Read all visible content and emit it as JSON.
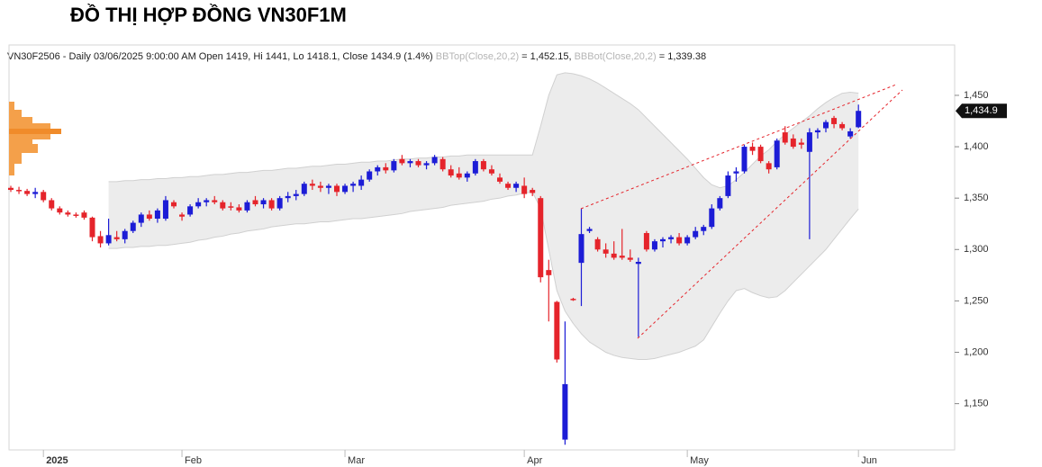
{
  "chart_data": {
    "type": "candlestick",
    "title": "ĐỒ THỊ HỢP ĐỒNG VN30F1M",
    "info": {
      "summary": "VN30F2506 - Daily 03/06/2025 9:00:00 AM Open 1419, Hi 1441, Lo 1418.1, Close 1434.9 (1.4%)",
      "bb_top_name": "BBTop(Close,20,2)",
      "bb_top_value": "= 1,452.15,",
      "bb_bot_name": "BBBot(Close,20,2)",
      "bb_bot_value": "= 1,339.38"
    },
    "categories": [
      null,
      null,
      null,
      null,
      "2025",
      null,
      null,
      null,
      null,
      null,
      null,
      null,
      null,
      null,
      null,
      null,
      null,
      null,
      null,
      null,
      null,
      "Feb",
      null,
      null,
      null,
      null,
      null,
      null,
      null,
      null,
      null,
      null,
      null,
      null,
      null,
      null,
      null,
      null,
      null,
      null,
      null,
      "Mar",
      null,
      null,
      null,
      null,
      null,
      null,
      null,
      null,
      null,
      null,
      null,
      null,
      null,
      null,
      null,
      null,
      null,
      null,
      null,
      null,
      null,
      "Apr",
      null,
      null,
      null,
      null,
      null,
      null,
      null,
      null,
      null,
      null,
      null,
      null,
      null,
      null,
      null,
      null,
      null,
      null,
      null,
      "May",
      null,
      null,
      null,
      null,
      null,
      null,
      null,
      null,
      null,
      null,
      null,
      null,
      null,
      null,
      null,
      null,
      null,
      null,
      null,
      null,
      "Jun"
    ],
    "candles": [
      [
        1360,
        1362,
        1356,
        1358
      ],
      [
        1358,
        1361,
        1354,
        1357
      ],
      [
        1357,
        1359,
        1352,
        1354
      ],
      [
        1354,
        1360,
        1350,
        1356
      ],
      [
        1356,
        1358,
        1346,
        1348
      ],
      [
        1348,
        1350,
        1338,
        1340
      ],
      [
        1340,
        1342,
        1334,
        1336
      ],
      [
        1336,
        1338,
        1332,
        1334
      ],
      [
        1334,
        1336,
        1331,
        1333
      ],
      [
        1336,
        1338,
        1329,
        1331
      ],
      [
        1331,
        1332,
        1308,
        1312
      ],
      [
        1313,
        1318,
        1302,
        1306
      ],
      [
        1306,
        1330,
        1304,
        1314
      ],
      [
        1312,
        1318,
        1308,
        1310
      ],
      [
        1310,
        1320,
        1306,
        1318
      ],
      [
        1318,
        1328,
        1316,
        1326
      ],
      [
        1326,
        1336,
        1322,
        1334
      ],
      [
        1334,
        1338,
        1328,
        1330
      ],
      [
        1330,
        1340,
        1326,
        1338
      ],
      [
        1330,
        1352,
        1328,
        1348
      ],
      [
        1346,
        1348,
        1340,
        1342
      ],
      [
        1334,
        1336,
        1328,
        1332
      ],
      [
        1334,
        1344,
        1332,
        1342
      ],
      [
        1342,
        1350,
        1340,
        1346
      ],
      [
        1346,
        1350,
        1342,
        1348
      ],
      [
        1348,
        1352,
        1344,
        1346
      ],
      [
        1346,
        1348,
        1338,
        1340
      ],
      [
        1342,
        1346,
        1338,
        1341
      ],
      [
        1341,
        1344,
        1336,
        1338
      ],
      [
        1338,
        1348,
        1336,
        1346
      ],
      [
        1348,
        1352,
        1342,
        1344
      ],
      [
        1344,
        1350,
        1340,
        1348
      ],
      [
        1348,
        1350,
        1338,
        1340
      ],
      [
        1340,
        1352,
        1338,
        1350
      ],
      [
        1350,
        1356,
        1346,
        1352
      ],
      [
        1352,
        1358,
        1348,
        1354
      ],
      [
        1354,
        1366,
        1352,
        1364
      ],
      [
        1364,
        1368,
        1358,
        1362
      ],
      [
        1362,
        1366,
        1356,
        1360
      ],
      [
        1360,
        1364,
        1354,
        1362
      ],
      [
        1362,
        1364,
        1352,
        1356
      ],
      [
        1356,
        1364,
        1354,
        1362
      ],
      [
        1362,
        1366,
        1356,
        1364
      ],
      [
        1362,
        1372,
        1358,
        1368
      ],
      [
        1368,
        1378,
        1366,
        1376
      ],
      [
        1376,
        1382,
        1372,
        1380
      ],
      [
        1380,
        1384,
        1374,
        1377
      ],
      [
        1377,
        1388,
        1375,
        1386
      ],
      [
        1388,
        1392,
        1382,
        1384
      ],
      [
        1384,
        1388,
        1380,
        1386
      ],
      [
        1386,
        1388,
        1380,
        1382
      ],
      [
        1382,
        1386,
        1378,
        1384
      ],
      [
        1384,
        1392,
        1382,
        1390
      ],
      [
        1388,
        1390,
        1376,
        1378
      ],
      [
        1378,
        1382,
        1370,
        1372
      ],
      [
        1374,
        1380,
        1368,
        1370
      ],
      [
        1370,
        1376,
        1366,
        1374
      ],
      [
        1374,
        1388,
        1372,
        1386
      ],
      [
        1386,
        1388,
        1376,
        1378
      ],
      [
        1378,
        1382,
        1372,
        1374
      ],
      [
        1370,
        1374,
        1364,
        1366
      ],
      [
        1364,
        1366,
        1358,
        1360
      ],
      [
        1360,
        1366,
        1356,
        1364
      ],
      [
        1362,
        1370,
        1350,
        1354
      ],
      [
        1358,
        1360,
        1352,
        1355
      ],
      [
        1350,
        1352,
        1268,
        1273
      ],
      [
        1280,
        1290,
        1230,
        1275
      ],
      [
        1249,
        1250,
        1190,
        1193
      ],
      [
        1115,
        1230,
        1110,
        1169
      ],
      [
        1252,
        1253,
        1250,
        1251
      ],
      [
        1287,
        1340,
        1245,
        1315
      ],
      [
        1318,
        1322,
        1316,
        1320
      ],
      [
        1310,
        1312,
        1298,
        1300
      ],
      [
        1300,
        1306,
        1292,
        1296
      ],
      [
        1296,
        1308,
        1290,
        1292
      ],
      [
        1294,
        1320,
        1290,
        1292
      ],
      [
        1292,
        1300,
        1288,
        1290
      ],
      [
        1286,
        1292,
        1215,
        1288
      ],
      [
        1316,
        1318,
        1298,
        1300
      ],
      [
        1300,
        1310,
        1298,
        1308
      ],
      [
        1308,
        1312,
        1302,
        1310
      ],
      [
        1310,
        1314,
        1306,
        1312
      ],
      [
        1312,
        1316,
        1304,
        1306
      ],
      [
        1306,
        1314,
        1304,
        1312
      ],
      [
        1312,
        1322,
        1310,
        1318
      ],
      [
        1318,
        1324,
        1314,
        1322
      ],
      [
        1322,
        1344,
        1320,
        1340
      ],
      [
        1340,
        1352,
        1338,
        1350
      ],
      [
        1352,
        1376,
        1350,
        1372
      ],
      [
        1374,
        1380,
        1366,
        1376
      ],
      [
        1376,
        1402,
        1374,
        1400
      ],
      [
        1400,
        1404,
        1392,
        1396
      ],
      [
        1400,
        1402,
        1384,
        1386
      ],
      [
        1384,
        1386,
        1374,
        1378
      ],
      [
        1380,
        1408,
        1378,
        1406
      ],
      [
        1414,
        1420,
        1402,
        1404
      ],
      [
        1408,
        1412,
        1398,
        1400
      ],
      [
        1404,
        1408,
        1398,
        1402
      ],
      [
        1395,
        1418,
        1310,
        1414
      ],
      [
        1414,
        1418,
        1408,
        1416
      ],
      [
        1418,
        1426,
        1414,
        1424
      ],
      [
        1428,
        1430,
        1418,
        1422
      ],
      [
        1422,
        1424,
        1416,
        1418
      ],
      [
        1410,
        1418,
        1408,
        1415
      ],
      [
        1419,
        1441,
        1418.1,
        1434.9
      ]
    ],
    "bb_upper": [
      null,
      null,
      null,
      null,
      null,
      null,
      null,
      null,
      null,
      null,
      null,
      null,
      1366,
      1366,
      1367,
      1367,
      1368,
      1368,
      1369,
      1369,
      1370,
      1370,
      1371,
      1371,
      1372,
      1373,
      1373,
      1374,
      1375,
      1375,
      1376,
      1377,
      1377,
      1378,
      1379,
      1379,
      1380,
      1381,
      1381,
      1382,
      1383,
      1383,
      1384,
      1385,
      1385,
      1386,
      1386,
      1387,
      1388,
      1388,
      1389,
      1389,
      1390,
      1390,
      1391,
      1391,
      1392,
      1392,
      1392,
      1392,
      1392,
      1392,
      1392,
      1392,
      1392,
      1420,
      1450,
      1470,
      1472,
      1471,
      1469,
      1466,
      1462,
      1457,
      1452,
      1447,
      1442,
      1436,
      1428,
      1420,
      1412,
      1404,
      1396,
      1388,
      1379,
      1370,
      1363,
      1360,
      1362,
      1368,
      1375,
      1383,
      1391,
      1397,
      1405,
      1412,
      1418,
      1424,
      1430,
      1437,
      1443,
      1448,
      1452,
      1453,
      1452.15
    ],
    "bb_lower": [
      null,
      null,
      null,
      null,
      null,
      null,
      null,
      null,
      null,
      null,
      null,
      null,
      1301,
      1301,
      1302,
      1302,
      1303,
      1303,
      1304,
      1304,
      1305,
      1306,
      1307,
      1309,
      1310,
      1312,
      1313,
      1315,
      1316,
      1318,
      1319,
      1320,
      1322,
      1323,
      1324,
      1325,
      1325,
      1326,
      1327,
      1327,
      1328,
      1329,
      1330,
      1330,
      1331,
      1332,
      1333,
      1334,
      1335,
      1337,
      1338,
      1339,
      1340,
      1341,
      1343,
      1344,
      1345,
      1346,
      1347,
      1349,
      1350,
      1352,
      1353,
      1355,
      1356,
      1340,
      1300,
      1260,
      1240,
      1228,
      1218,
      1210,
      1205,
      1200,
      1197,
      1195,
      1194,
      1193,
      1193,
      1194,
      1196,
      1198,
      1200,
      1203,
      1206,
      1212,
      1225,
      1238,
      1250,
      1260,
      1262,
      1258,
      1255,
      1253,
      1254,
      1260,
      1268,
      1276,
      1284,
      1292,
      1300,
      1310,
      1320,
      1330,
      1339.38
    ],
    "last_price": {
      "value": 1434.9,
      "label": "1,434.9"
    },
    "up_color": "#1c1cd6",
    "down_color": "#e5242b",
    "band_color": "#ececec",
    "ylim": [
      1105,
      1499
    ],
    "yticks": [
      {
        "value": 1150,
        "label": "1,150"
      },
      {
        "value": 1200,
        "label": "1,200"
      },
      {
        "value": 1250,
        "label": "1,250"
      },
      {
        "value": 1300,
        "label": "1,300"
      },
      {
        "value": 1350,
        "label": "1,350"
      },
      {
        "value": 1400,
        "label": "1,400"
      },
      {
        "value": 1450,
        "label": "1,450"
      }
    ]
  }
}
